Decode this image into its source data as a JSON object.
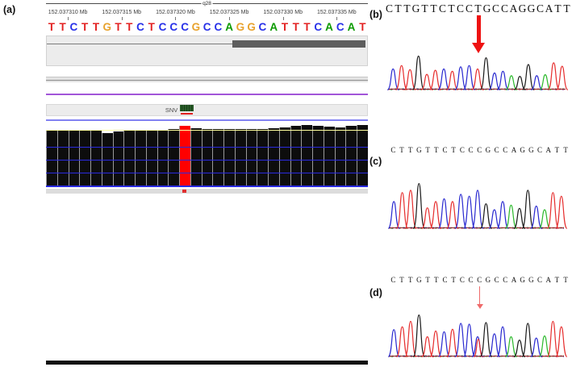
{
  "panel_a": {
    "label": "(a)",
    "ideogram": {
      "band_label": "q28"
    },
    "ruler_tick_labels": [
      "152.037310 Mb",
      "152.037315 Mb",
      "152.037320 Mb",
      "152.037325 Mb",
      "152.037330 Mb",
      "152.037335 Mb"
    ],
    "reference_sequence": "TTCTTGTTCTCCCGCCAGGCATTTCACAT",
    "base_colors": {
      "A": "#0b9a00",
      "C": "#2730e8",
      "G": "#e8a22d",
      "T": "#e32222"
    },
    "snv_track": {
      "label": "SNV"
    },
    "coverage": {
      "bar_color": "#0d0d0d",
      "variant_color": "#ff0000",
      "variant_index": 12,
      "bar_heights": [
        0.9,
        0.9,
        0.9,
        0.9,
        0.9,
        0.86,
        0.89,
        0.9,
        0.9,
        0.9,
        0.91,
        0.92,
        0.97,
        0.93,
        0.92,
        0.92,
        0.92,
        0.92,
        0.92,
        0.92,
        0.93,
        0.95,
        0.97,
        0.99,
        0.98,
        0.96,
        0.95,
        0.97,
        0.99
      ]
    },
    "reads": {
      "row_count": 21,
      "variant_base": "T",
      "variant_base_color": "#e05050",
      "pale_segments": [
        {
          "row": 5,
          "from": 0,
          "to": 0.115,
          "shape": "rect"
        },
        {
          "row": 6,
          "from": 0,
          "to": 0.095,
          "shape": "rect"
        },
        {
          "row": 6,
          "from": 0.103,
          "to": 0.148,
          "shape": "arrow-left"
        },
        {
          "row": 9,
          "from": 0.475,
          "to": 0.69,
          "shape": "notch-left"
        },
        {
          "row": 10,
          "from": 0.683,
          "to": 0.727,
          "shape": "x"
        },
        {
          "row": 11,
          "from": 0.83,
          "to": 0.945,
          "shape": "rect"
        },
        {
          "row": 12,
          "from": 0,
          "to": 1,
          "shape": "rect"
        }
      ]
    }
  },
  "panel_b": {
    "label": "(b)",
    "sequence": "CTTGTTCTCCTGCCAGGCATT",
    "arrow": {
      "style": "thick",
      "index": 10
    },
    "peak_heights": [
      0.62,
      0.72,
      0.6,
      1.0,
      0.46,
      0.58,
      0.62,
      0.55,
      0.68,
      0.72,
      0.62,
      0.95,
      0.5,
      0.55,
      0.42,
      0.4,
      0.75,
      0.42,
      0.45,
      0.8,
      0.7
    ]
  },
  "panel_c": {
    "label": "(c)",
    "sequence": "CTTGTTCTCCCGCCAGGCATT",
    "peak_heights": [
      0.6,
      0.8,
      0.85,
      1.0,
      0.46,
      0.6,
      0.66,
      0.6,
      0.76,
      0.72,
      0.85,
      0.55,
      0.42,
      0.6,
      0.52,
      0.45,
      0.85,
      0.5,
      0.42,
      0.8,
      0.72
    ]
  },
  "panel_d": {
    "label": "(d)",
    "sequence": "CTTGTTCTCCCGCCAGGCATT",
    "arrow": {
      "style": "thin",
      "index": 10
    },
    "heterozygous": {
      "index": 10,
      "base": "T",
      "height": 0.42
    },
    "peak_heights": [
      0.65,
      0.72,
      0.85,
      1.0,
      0.48,
      0.62,
      0.6,
      0.66,
      0.8,
      0.78,
      0.48,
      0.82,
      0.55,
      0.72,
      0.48,
      0.4,
      0.8,
      0.45,
      0.5,
      0.85,
      0.72
    ]
  },
  "trace_colors": {
    "A": "#2db92d",
    "C": "#2a2ad0",
    "G": "#1a1a1a",
    "T": "#e62e2e"
  }
}
